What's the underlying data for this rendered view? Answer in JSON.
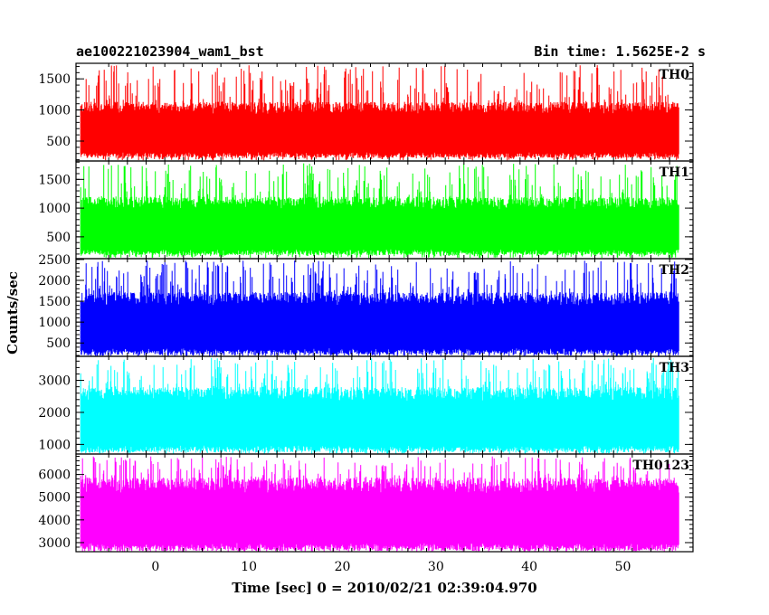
{
  "header": {
    "left_title": "ae100221023904_wam1_bst",
    "right_title": "Bin time: 1.5625E-2 s"
  },
  "chart_data": {
    "type": "line",
    "xlabel": "Time [sec] 0 = 2010/02/21 02:39:04.970",
    "ylabel": "Counts/sec",
    "xlim": [
      -8.5,
      57.5
    ],
    "x_ticks": [
      "0",
      "10",
      "20",
      "30",
      "40",
      "50"
    ],
    "x_tick_values": [
      0,
      10,
      20,
      30,
      40,
      50
    ],
    "data_range": [
      -8,
      56
    ],
    "panels": [
      {
        "name": "TH0",
        "color": "#ff0000",
        "ylim": [
          180,
          1750
        ],
        "y_ticks": [
          500,
          1000,
          1500
        ],
        "y_tick_labels": [
          "500",
          "1000",
          "1500"
        ],
        "low": 230,
        "base_high": 1000,
        "spike_max": 1720
      },
      {
        "name": "TH1",
        "color": "#00ff00",
        "ylim": [
          120,
          1820
        ],
        "y_ticks": [
          500,
          1000,
          1500
        ],
        "y_tick_labels": [
          "500",
          "1000",
          "1500"
        ],
        "low": 180,
        "base_high": 1050,
        "spike_max": 1780
      },
      {
        "name": "TH2",
        "color": "#0000ff",
        "ylim": [
          180,
          2520
        ],
        "y_ticks": [
          500,
          1000,
          1500,
          2000,
          2500
        ],
        "y_tick_labels": [
          "500",
          "1000",
          "1500",
          "2000",
          "2500"
        ],
        "low": 220,
        "base_high": 1500,
        "spike_max": 2480
      },
      {
        "name": "TH3",
        "color": "#00ffff",
        "ylim": [
          700,
          3750
        ],
        "y_ticks": [
          1000,
          2000,
          3000
        ],
        "y_tick_labels": [
          "1000",
          "2000",
          "3000"
        ],
        "low": 760,
        "base_high": 2500,
        "spike_max": 3700
      },
      {
        "name": "TH0123",
        "color": "#ff00ff",
        "ylim": [
          2600,
          6900
        ],
        "y_ticks": [
          3000,
          4000,
          5000,
          6000
        ],
        "y_tick_labels": [
          "3000",
          "4000",
          "5000",
          "6000"
        ],
        "low": 2650,
        "base_high": 5400,
        "spike_max": 6800
      }
    ]
  }
}
